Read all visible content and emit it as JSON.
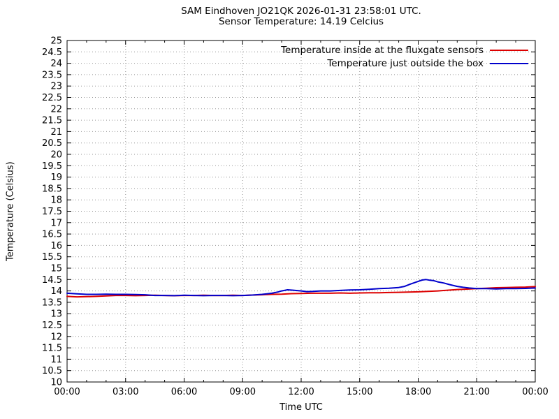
{
  "chart_data": {
    "type": "line",
    "title": "SAM Eindhoven JO21QK 2026-01-31 23:58:01 UTC.",
    "subtitle": "Sensor Temperature: 14.19 Celcius",
    "xlabel": "Time UTC",
    "ylabel": "Temperature (Celsius)",
    "xlim": [
      0,
      24
    ],
    "ylim": [
      10,
      25
    ],
    "y_tick_step": 0.5,
    "x_tick_interval_hours": 3,
    "x_tick_labels": [
      "00:00",
      "03:00",
      "06:00",
      "09:00",
      "12:00",
      "15:00",
      "18:00",
      "21:00",
      "00:00"
    ],
    "grid": true,
    "legend_position": "top-right-inside",
    "series": [
      {
        "name": "Temperature inside at the fluxgate sensors",
        "color": "#dd0000",
        "points": [
          [
            0,
            13.76
          ],
          [
            0.5,
            13.74
          ],
          [
            1,
            13.75
          ],
          [
            1.5,
            13.76
          ],
          [
            2,
            13.78
          ],
          [
            2.5,
            13.8
          ],
          [
            3,
            13.8
          ],
          [
            3.5,
            13.79
          ],
          [
            4,
            13.8
          ],
          [
            4.5,
            13.81
          ],
          [
            5,
            13.8
          ],
          [
            5.5,
            13.79
          ],
          [
            6,
            13.8
          ],
          [
            6.5,
            13.8
          ],
          [
            7,
            13.81
          ],
          [
            7.5,
            13.8
          ],
          [
            8,
            13.8
          ],
          [
            8.5,
            13.81
          ],
          [
            9,
            13.8
          ],
          [
            9.5,
            13.82
          ],
          [
            10,
            13.83
          ],
          [
            10.5,
            13.85
          ],
          [
            11,
            13.86
          ],
          [
            11.5,
            13.88
          ],
          [
            12,
            13.89
          ],
          [
            12.5,
            13.9
          ],
          [
            13,
            13.9
          ],
          [
            13.5,
            13.9
          ],
          [
            14,
            13.91
          ],
          [
            14.5,
            13.9
          ],
          [
            15,
            13.91
          ],
          [
            15.5,
            13.92
          ],
          [
            16,
            13.92
          ],
          [
            16.5,
            13.93
          ],
          [
            17,
            13.94
          ],
          [
            17.5,
            13.95
          ],
          [
            18,
            13.96
          ],
          [
            18.5,
            13.98
          ],
          [
            19,
            14.0
          ],
          [
            19.5,
            14.03
          ],
          [
            20,
            14.06
          ],
          [
            20.5,
            14.08
          ],
          [
            21,
            14.1
          ],
          [
            21.5,
            14.12
          ],
          [
            22,
            14.14
          ],
          [
            22.5,
            14.15
          ],
          [
            23,
            14.16
          ],
          [
            23.5,
            14.17
          ],
          [
            24,
            14.19
          ]
        ]
      },
      {
        "name": "Temperature just outside the box",
        "color": "#0000cc",
        "points": [
          [
            0,
            13.9
          ],
          [
            0.5,
            13.87
          ],
          [
            1,
            13.85
          ],
          [
            1.5,
            13.85
          ],
          [
            2,
            13.86
          ],
          [
            2.5,
            13.85
          ],
          [
            3,
            13.85
          ],
          [
            3.5,
            13.84
          ],
          [
            4,
            13.83
          ],
          [
            4.5,
            13.8
          ],
          [
            5,
            13.8
          ],
          [
            5.5,
            13.79
          ],
          [
            6,
            13.81
          ],
          [
            6.5,
            13.8
          ],
          [
            7,
            13.79
          ],
          [
            7.5,
            13.8
          ],
          [
            8,
            13.8
          ],
          [
            8.5,
            13.79
          ],
          [
            9,
            13.8
          ],
          [
            9.5,
            13.82
          ],
          [
            10,
            13.85
          ],
          [
            10.5,
            13.9
          ],
          [
            10.8,
            13.95
          ],
          [
            11,
            14.0
          ],
          [
            11.3,
            14.05
          ],
          [
            11.6,
            14.03
          ],
          [
            12,
            14.0
          ],
          [
            12.3,
            13.97
          ],
          [
            12.6,
            13.98
          ],
          [
            13,
            14.0
          ],
          [
            13.5,
            14.0
          ],
          [
            14,
            14.02
          ],
          [
            14.5,
            14.04
          ],
          [
            15,
            14.05
          ],
          [
            15.5,
            14.07
          ],
          [
            16,
            14.1
          ],
          [
            16.5,
            14.12
          ],
          [
            17,
            14.15
          ],
          [
            17.3,
            14.2
          ],
          [
            17.6,
            14.3
          ],
          [
            18,
            14.42
          ],
          [
            18.2,
            14.48
          ],
          [
            18.4,
            14.5
          ],
          [
            18.6,
            14.47
          ],
          [
            18.8,
            14.45
          ],
          [
            19,
            14.4
          ],
          [
            19.3,
            14.35
          ],
          [
            19.6,
            14.28
          ],
          [
            20,
            14.2
          ],
          [
            20.3,
            14.16
          ],
          [
            20.6,
            14.13
          ],
          [
            21,
            14.1
          ],
          [
            21.5,
            14.1
          ],
          [
            22,
            14.09
          ],
          [
            22.5,
            14.1
          ],
          [
            23,
            14.1
          ],
          [
            23.5,
            14.11
          ],
          [
            24,
            14.13
          ]
        ]
      }
    ]
  },
  "colors": {
    "background": "#ffffff",
    "axis": "#000000",
    "grid": "#6b6b6b"
  }
}
